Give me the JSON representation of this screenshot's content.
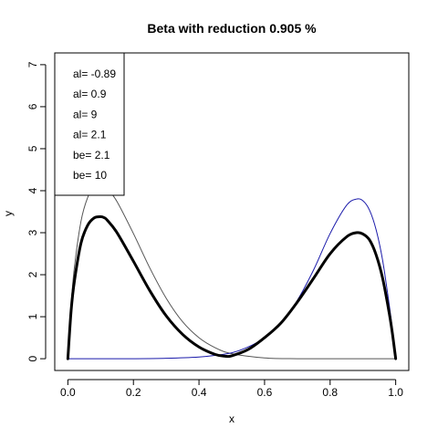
{
  "chart_data": {
    "type": "line",
    "title": "Beta with reduction 0.905 %",
    "xlabel": "x",
    "ylabel": "y",
    "xlim": [
      -0.04,
      1.04
    ],
    "ylim": [
      -0.28,
      7.28
    ],
    "x_ticks": [
      0.0,
      0.2,
      0.4,
      0.6,
      0.8,
      1.0
    ],
    "x_tick_labels": [
      "0.0",
      "0.2",
      "0.4",
      "0.6",
      "0.8",
      "1.0"
    ],
    "y_ticks": [
      0,
      1,
      2,
      3,
      4,
      5,
      6,
      7
    ],
    "y_tick_labels": [
      "0",
      "1",
      "2",
      "3",
      "4",
      "5",
      "6",
      "7"
    ],
    "grid": false,
    "legend": {
      "position": "top-left",
      "entries": [
        "al= -0.89",
        "al= 0.9",
        "al= 9",
        "al= 2.1",
        "be= 2.1",
        "be= 10"
      ]
    },
    "series": [
      {
        "color": "#555555",
        "lineWidth": "thin",
        "x": [
          0,
          0.01,
          0.02,
          0.04,
          0.06,
          0.08,
          0.1,
          0.12,
          0.15,
          0.2,
          0.25,
          0.3,
          0.35,
          0.4,
          0.45,
          0.5,
          0.6,
          0.7,
          0.8,
          0.9,
          1.0
        ],
        "y": [
          0,
          1.3,
          2.18,
          3.27,
          3.83,
          4.09,
          4.14,
          4.05,
          3.74,
          2.98,
          2.16,
          1.44,
          0.88,
          0.5,
          0.26,
          0.12,
          0.02,
          0.0,
          0.0,
          0.0,
          0
        ]
      },
      {
        "color": "#1a1aaa",
        "lineWidth": "thin",
        "x": [
          0,
          0.1,
          0.2,
          0.3,
          0.4,
          0.45,
          0.5,
          0.55,
          0.6,
          0.65,
          0.7,
          0.75,
          0.8,
          0.85,
          0.88,
          0.9,
          0.92,
          0.94,
          0.96,
          0.98,
          0.99,
          1.0
        ],
        "y": [
          0,
          0.0,
          0.0,
          0.01,
          0.04,
          0.08,
          0.14,
          0.28,
          0.5,
          0.85,
          1.39,
          2.12,
          2.98,
          3.65,
          3.8,
          3.76,
          3.54,
          3.08,
          2.35,
          1.3,
          0.7,
          0
        ]
      },
      {
        "color": "#000000",
        "lineWidth": "thick",
        "x": [
          0,
          0.01,
          0.02,
          0.04,
          0.06,
          0.08,
          0.1,
          0.11,
          0.12,
          0.15,
          0.2,
          0.25,
          0.3,
          0.35,
          0.4,
          0.45,
          0.48,
          0.5,
          0.55,
          0.6,
          0.65,
          0.7,
          0.75,
          0.8,
          0.85,
          0.88,
          0.9,
          0.92,
          0.94,
          0.96,
          0.98,
          0.99,
          1.0
        ],
        "y": [
          0,
          1.15,
          1.85,
          2.75,
          3.17,
          3.35,
          3.38,
          3.36,
          3.3,
          3.0,
          2.32,
          1.62,
          1.02,
          0.58,
          0.28,
          0.1,
          0.06,
          0.07,
          0.22,
          0.5,
          0.85,
          1.35,
          1.92,
          2.5,
          2.9,
          3.0,
          2.97,
          2.83,
          2.48,
          1.92,
          1.1,
          0.6,
          0
        ]
      }
    ]
  }
}
